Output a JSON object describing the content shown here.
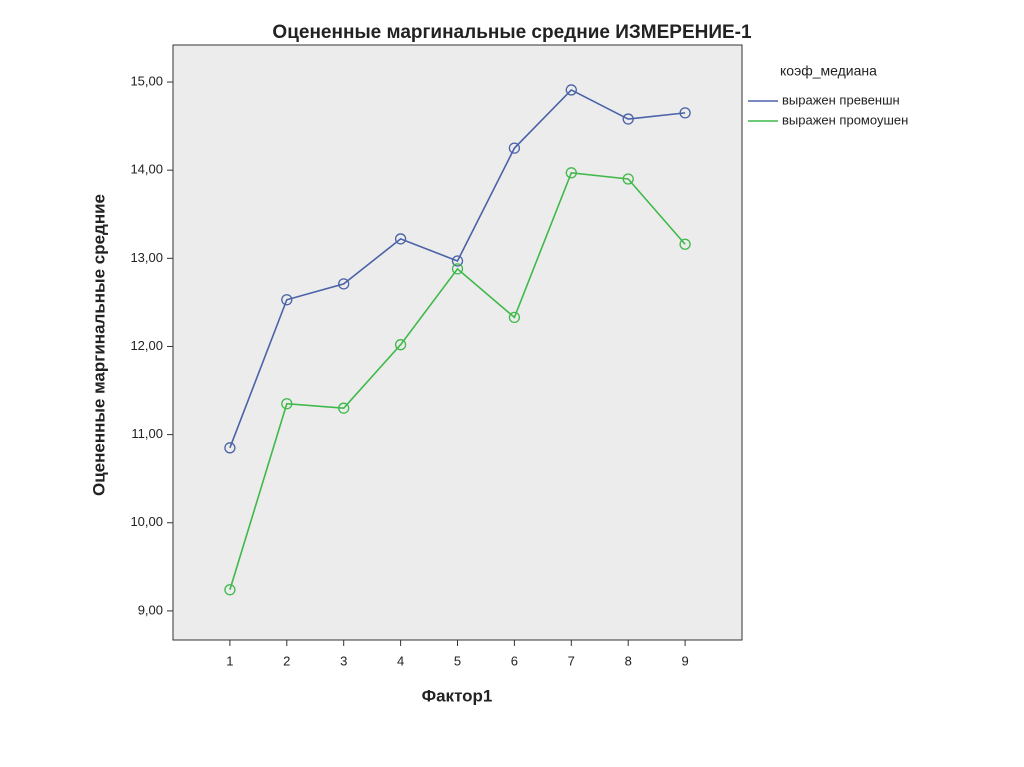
{
  "chart_data": {
    "type": "line",
    "title": "Оцененные маргинальные средние ИЗМЕРЕНИЕ-1",
    "x_label": "Фактор1",
    "y_label": "Оцененные маргинальные средние",
    "legend_title": "коэф_медиана",
    "categories": [
      "1",
      "2",
      "3",
      "4",
      "5",
      "6",
      "7",
      "8",
      "9"
    ],
    "series": [
      {
        "name": "выражен превеншн",
        "color": "#4a62a8",
        "values": [
          10.85,
          12.53,
          12.71,
          13.22,
          12.97,
          14.25,
          14.91,
          14.58,
          14.65
        ]
      },
      {
        "name": "выражен промоушен",
        "color": "#3fb94a",
        "values": [
          9.24,
          11.35,
          11.3,
          12.02,
          12.88,
          12.33,
          13.97,
          13.9,
          13.16
        ]
      }
    ],
    "ylim": [
      8.67,
      15.42
    ],
    "yticks": [
      {
        "value": 9,
        "label": "9,00"
      },
      {
        "value": 10,
        "label": "10,00"
      },
      {
        "value": 11,
        "label": "11,00"
      },
      {
        "value": 12,
        "label": "12,00"
      },
      {
        "value": 13,
        "label": "13,00"
      },
      {
        "value": 14,
        "label": "14,00"
      },
      {
        "value": 15,
        "label": "15,00"
      }
    ],
    "markers": "open-circle",
    "legend": "right"
  }
}
